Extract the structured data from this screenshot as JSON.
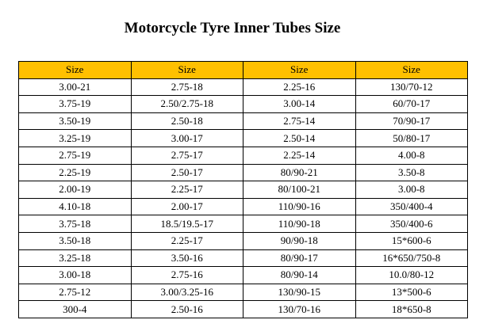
{
  "title": "Motorcycle Tyre Inner Tubes Size",
  "header_color": "#ffc000",
  "headers": [
    "Size",
    "Size",
    "Size",
    "Size"
  ],
  "rows": [
    [
      "3.00-21",
      "2.75-18",
      "2.25-16",
      "130/70-12"
    ],
    [
      "3.75-19",
      "2.50/2.75-18",
      "3.00-14",
      "60/70-17"
    ],
    [
      "3.50-19",
      "2.50-18",
      "2.75-14",
      "70/90-17"
    ],
    [
      "3.25-19",
      "3.00-17",
      "2.50-14",
      "50/80-17"
    ],
    [
      "2.75-19",
      "2.75-17",
      "2.25-14",
      "4.00-8"
    ],
    [
      "2.25-19",
      "2.50-17",
      "80/90-21",
      "3.50-8"
    ],
    [
      "2.00-19",
      "2.25-17",
      "80/100-21",
      "3.00-8"
    ],
    [
      "4.10-18",
      "2.00-17",
      "110/90-16",
      "350/400-4"
    ],
    [
      "3.75-18",
      "18.5/19.5-17",
      "110/90-18",
      "350/400-6"
    ],
    [
      "3.50-18",
      "2.25-17",
      "90/90-18",
      "15*600-6"
    ],
    [
      "3.25-18",
      "3.50-16",
      "80/90-17",
      "16*650/750-8"
    ],
    [
      "3.00-18",
      "2.75-16",
      "80/90-14",
      "10.0/80-12"
    ],
    [
      "2.75-12",
      "3.00/3.25-16",
      "130/90-15",
      "13*500-6"
    ],
    [
      "300-4",
      "2.50-16",
      "130/70-16",
      "18*650-8"
    ]
  ]
}
